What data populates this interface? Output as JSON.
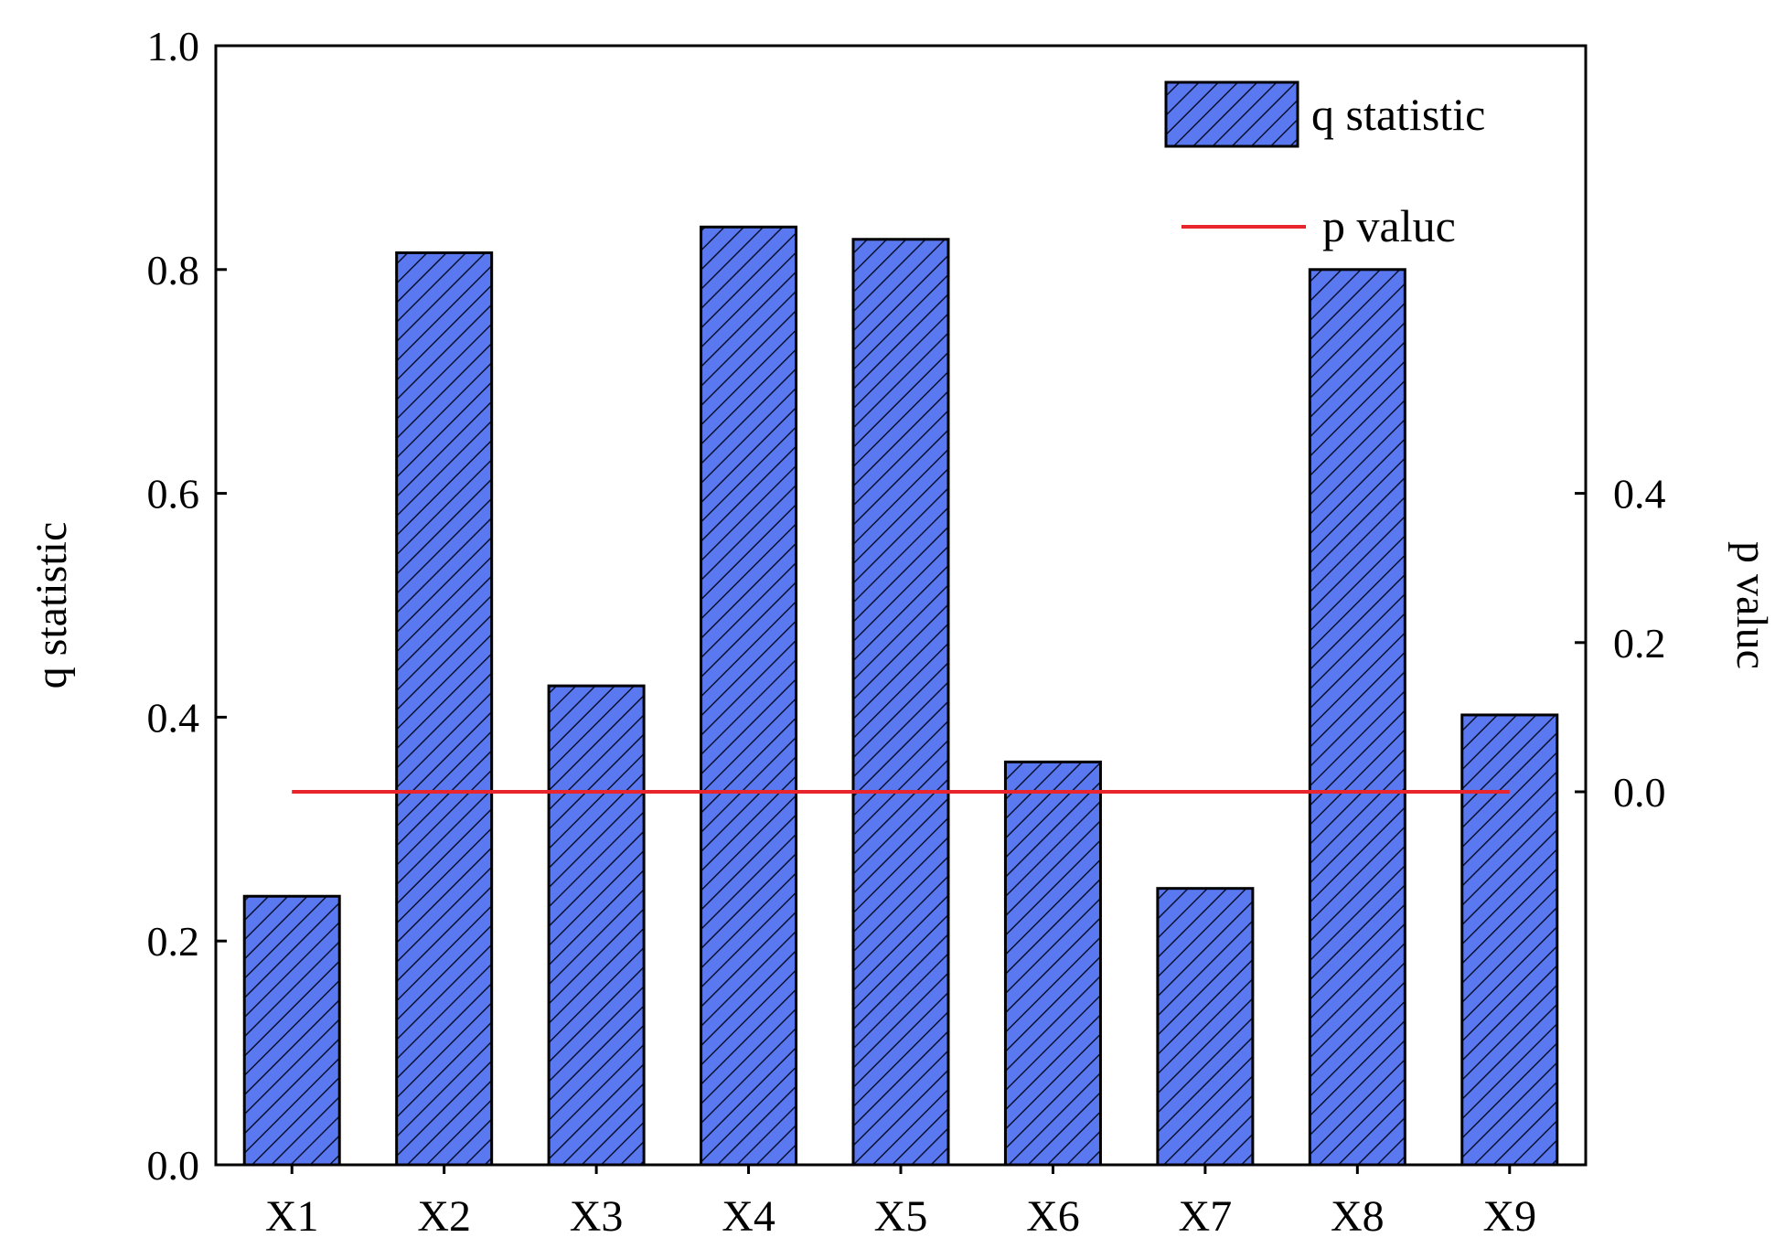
{
  "chart_data": {
    "type": "bar",
    "categories": [
      "X1",
      "X2",
      "X3",
      "X4",
      "X5",
      "X6",
      "X7",
      "X8",
      "X9"
    ],
    "series": [
      {
        "name": "q statistic",
        "axis": "left",
        "kind": "bar",
        "values": [
          0.24,
          0.815,
          0.428,
          0.838,
          0.827,
          0.36,
          0.247,
          0.8,
          0.402
        ]
      },
      {
        "name": "p valuc",
        "axis": "right",
        "kind": "line",
        "values": [
          0,
          0,
          0,
          0,
          0,
          0,
          0,
          0,
          0
        ]
      }
    ],
    "ylabel": "q statistic",
    "ylabel_right": "p valuc",
    "ylim": [
      0,
      1.0
    ],
    "ylim_right": [
      -0.5,
      1.0
    ],
    "yticks": [
      "0.0",
      "0.2",
      "0.4",
      "0.6",
      "0.8",
      "1.0"
    ],
    "yticks_right": [
      "0.0",
      "0.2",
      "0.4"
    ],
    "xlabel": "",
    "title": "",
    "grid": false,
    "legend": "top-right",
    "colors": {
      "bar_fill": "#5a78f0",
      "bar_hatch": "#0b1130",
      "line": "#e8242c"
    }
  }
}
